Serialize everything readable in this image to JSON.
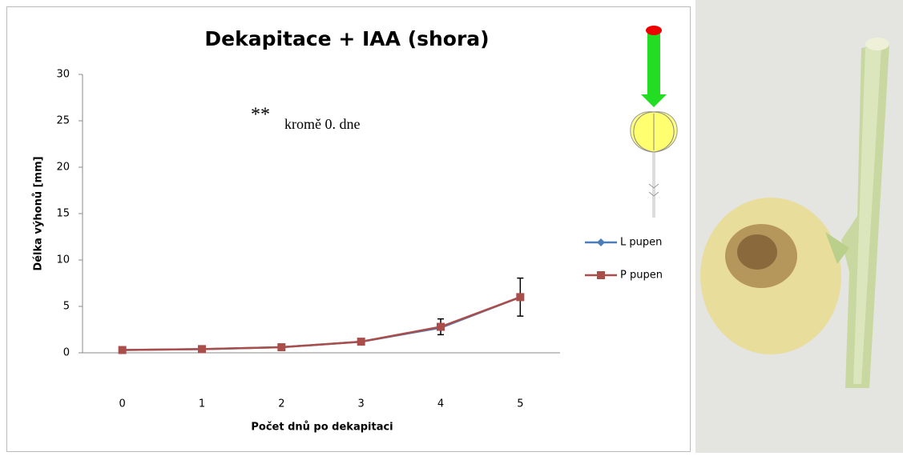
{
  "chart_data": {
    "type": "line",
    "title": "Dekapitace + IAA (shora)",
    "x_label": "Počet dnů po dekapitaci",
    "y_label": "Délka výhonů [mm]",
    "annotations": [
      "**",
      "kromě 0. dne"
    ],
    "categories": [
      "0",
      "1",
      "2",
      "3",
      "4",
      "5"
    ],
    "series": [
      {
        "name": "L pupen",
        "color": "#4a7ebb",
        "marker": "diamond",
        "values": [
          0.3,
          0.4,
          0.6,
          1.2,
          2.7,
          6.0
        ]
      },
      {
        "name": "P pupen",
        "color": "#a94e4b",
        "marker": "square",
        "values": [
          0.3,
          0.4,
          0.6,
          1.2,
          2.8,
          6.0
        ],
        "errors": [
          0.1,
          0.1,
          0.15,
          0.2,
          0.85,
          2.05
        ]
      }
    ],
    "ylim": [
      0,
      30
    ],
    "yticks": [
      0,
      5,
      10,
      15,
      20,
      25,
      30
    ],
    "grid": false,
    "legend": "right"
  }
}
